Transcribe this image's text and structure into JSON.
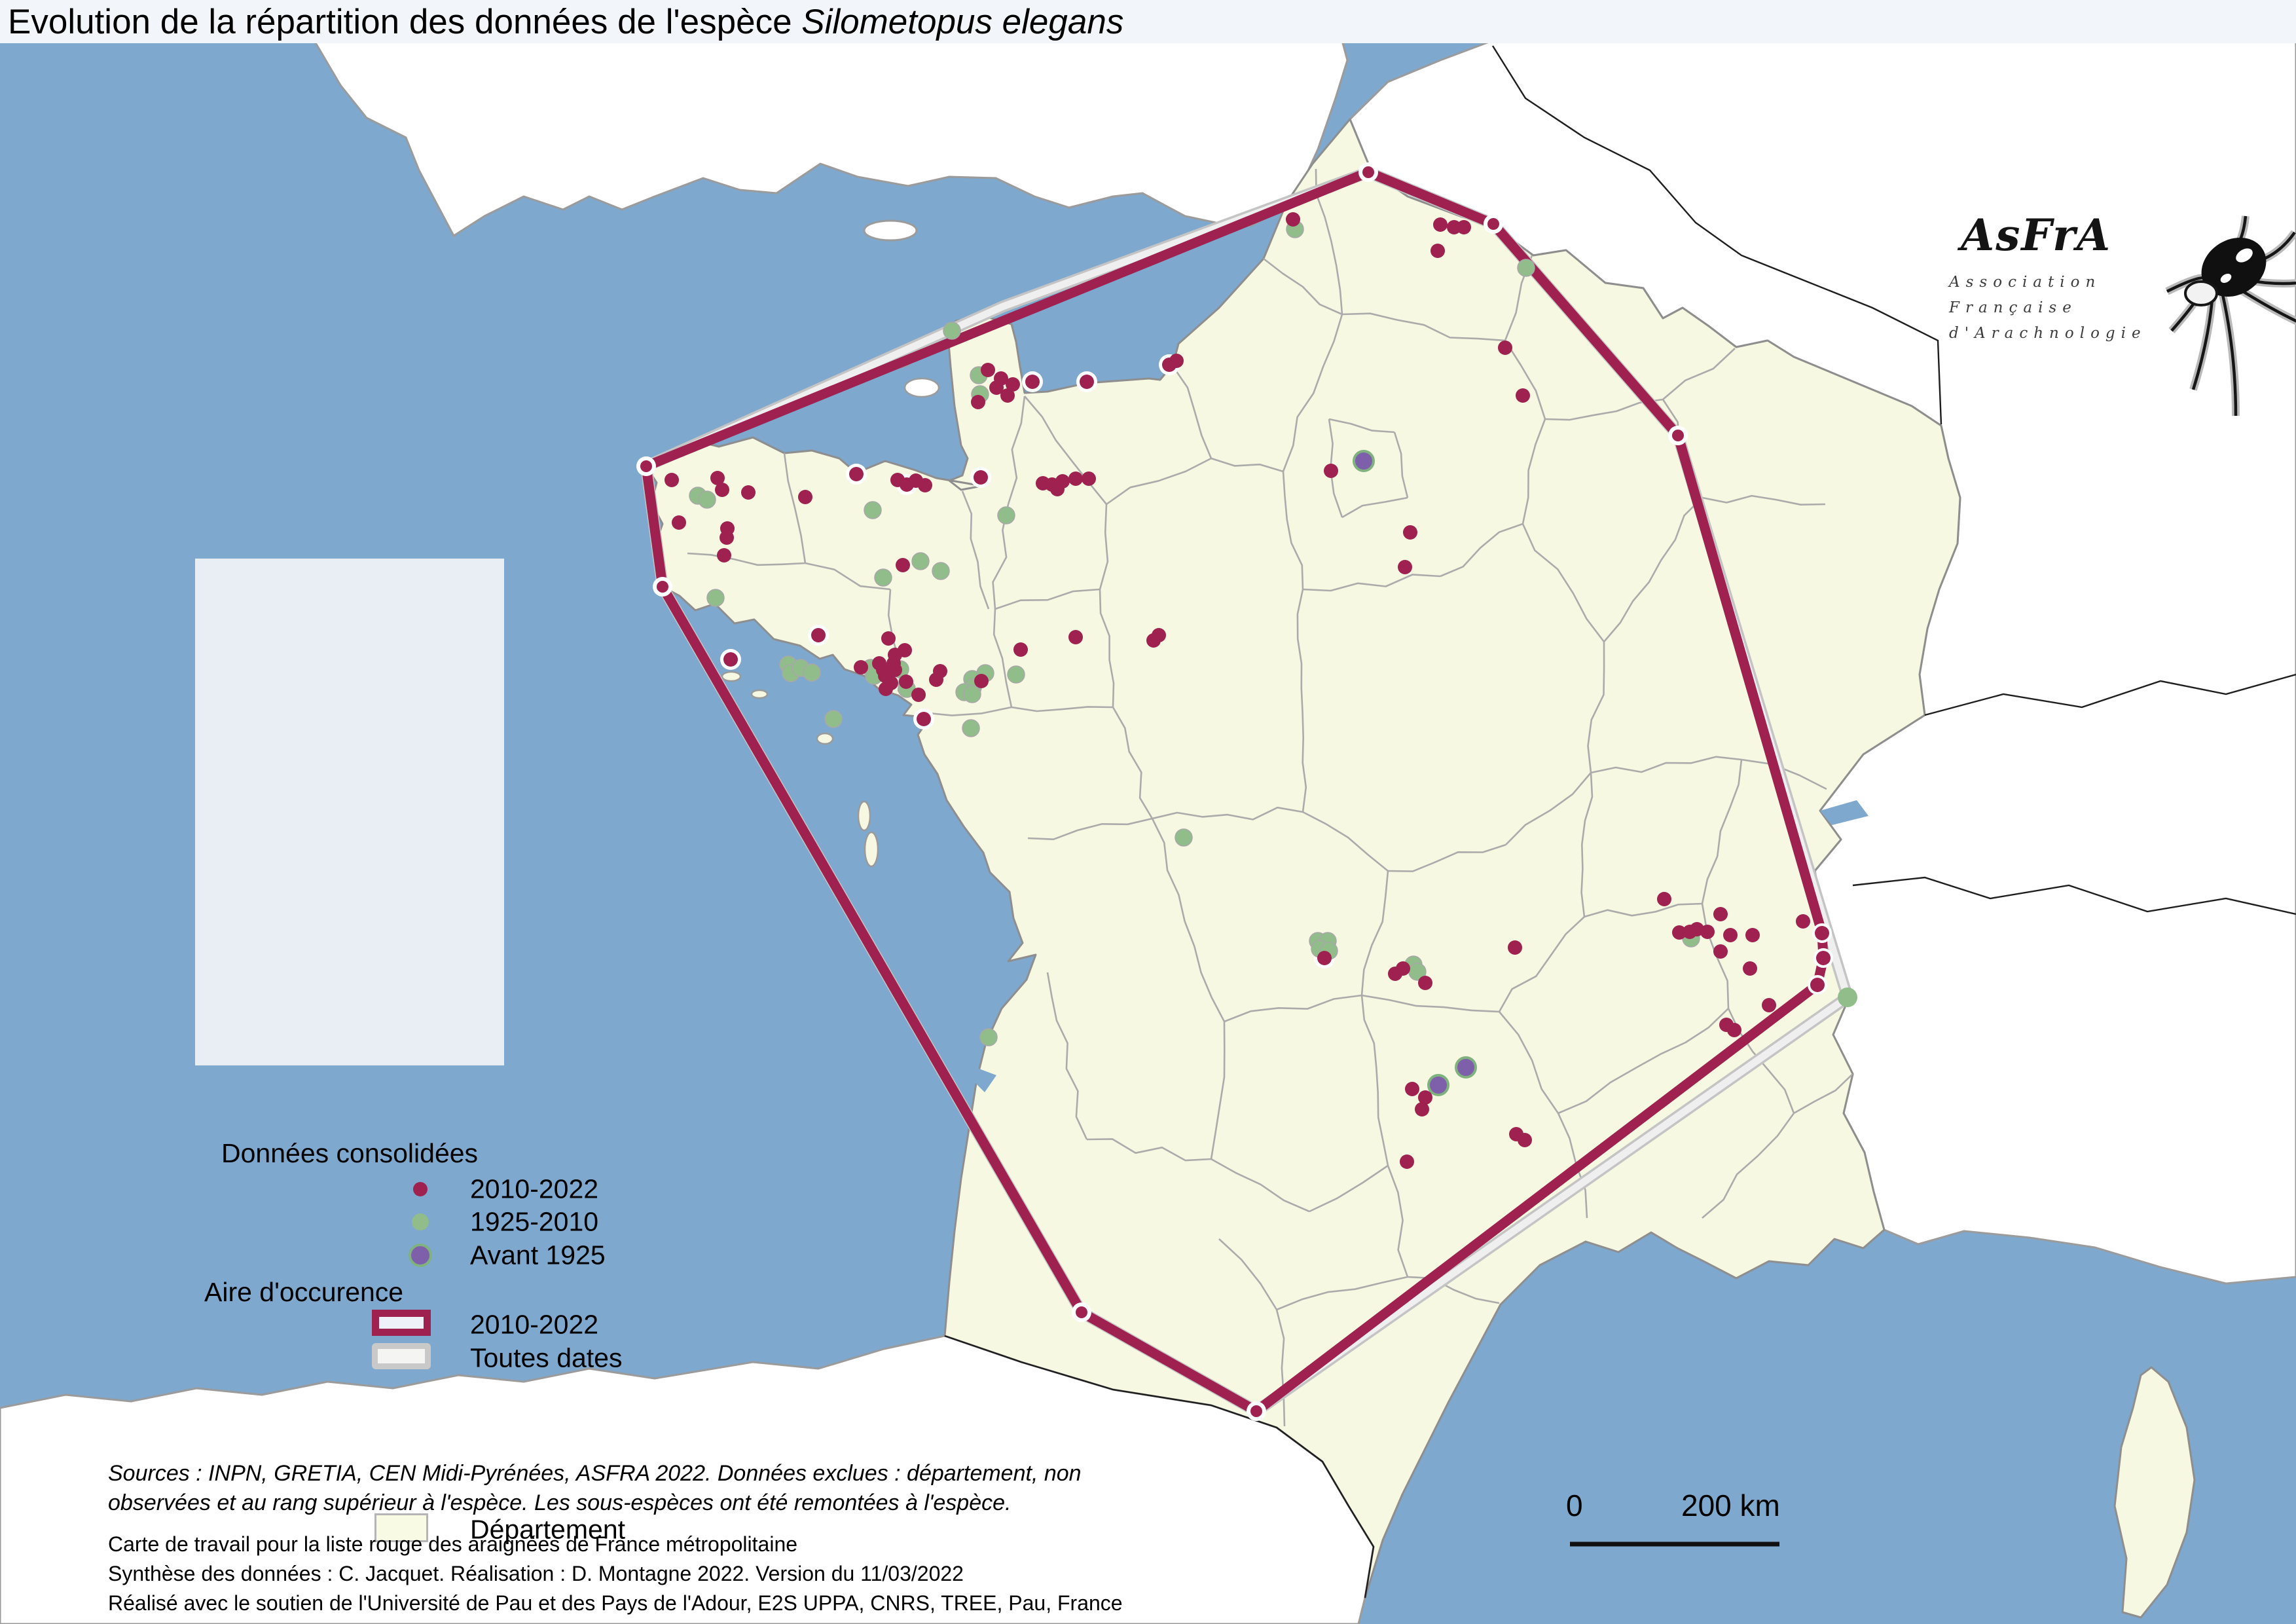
{
  "title": {
    "prefix": "Evolution de la répartition des données de l'espèce ",
    "species": "Silometopus elegans"
  },
  "legend": {
    "header_points": "Données consolidées",
    "items": [
      {
        "label": "2010-2022",
        "color": "#9e2150"
      },
      {
        "label": "1925-2010",
        "color": "#90bd8a"
      },
      {
        "label": "Avant 1925",
        "color": "#7e5fa9"
      }
    ],
    "header_area": "Aire d'occurence",
    "area_items": [
      {
        "label": "2010-2022",
        "color": "#9e2150"
      },
      {
        "label": "Toutes dates",
        "color": "#c9c9c9"
      }
    ],
    "department_label": "Département",
    "department_color": "#f8fae4"
  },
  "logo": {
    "name": "AsFrA",
    "sub1": "Association",
    "sub2": "Française",
    "sub3": "d'Arachnologie",
    "spider_icon": "spider-icon"
  },
  "scalebar": {
    "start": "0",
    "end": "200 km"
  },
  "notes": {
    "sources_line1": "Sources : INPN, GRETIA, CEN Midi-Pyrénées, ASFRA 2022. Données exclues : département, non",
    "sources_line2": "observées et au rang supérieur à l'espèce. Les sous-espèces ont été remontées à l'espèce.",
    "credit_line1": "Carte de travail pour la liste rouge des araignées de France métropolitaine",
    "credit_line2": "Synthèse des données : C. Jacquet. Réalisation : D. Montagne 2022. Version du 11/03/2022",
    "credit_line3": "Réalisé avec le soutien de l'Université de Pau et des Pays de l'Adour, E2S UPPA, CNRS, TREE, Pau, France"
  },
  "colors": {
    "sea": "#7EA8CE",
    "other_land": "#FFFFFF",
    "france_fill": "#F6F8E2",
    "border_gray": "#9b9b9b",
    "dept_gray": "#ABABAB",
    "maroon": "#9e2150",
    "green": "#90bd8a",
    "green_ring": "#7fb27f",
    "purple": "#7e5fa9",
    "hull_gray_outer": "#c4c4c4",
    "hull_gray_inner": "#efefef",
    "legend_bg": "#e9edf4"
  },
  "map": {
    "points_2010_2022": [
      [
        1975,
        335
      ],
      [
        2200,
        343
      ],
      [
        2221,
        347
      ],
      [
        2236,
        347
      ],
      [
        2196,
        383
      ],
      [
        2299,
        531
      ],
      [
        2326,
        604
      ],
      [
        1786,
        557
      ],
      [
        1797,
        551
      ],
      [
        1660,
        583
      ],
      [
        1593,
        738
      ],
      [
        1607,
        740
      ],
      [
        1623,
        735
      ],
      [
        1615,
        747
      ],
      [
        1643,
        731
      ],
      [
        1663,
        731
      ],
      [
        1498,
        729
      ],
      [
        1509,
        565
      ],
      [
        1529,
        578
      ],
      [
        1522,
        592
      ],
      [
        1547,
        587
      ],
      [
        1577,
        583
      ],
      [
        1539,
        604
      ],
      [
        1494,
        614
      ],
      [
        1026,
        733
      ],
      [
        1037,
        798
      ],
      [
        1096,
        730
      ],
      [
        1103,
        748
      ],
      [
        1143,
        752
      ],
      [
        1111,
        807
      ],
      [
        1110,
        821
      ],
      [
        1106,
        848
      ],
      [
        1230,
        759
      ],
      [
        1308,
        724
      ],
      [
        1371,
        733
      ],
      [
        1385,
        740
      ],
      [
        1399,
        734
      ],
      [
        1413,
        741
      ],
      [
        1250,
        970
      ],
      [
        1116,
        1007
      ],
      [
        1315,
        1019
      ],
      [
        1343,
        1013
      ],
      [
        1349,
        1023
      ],
      [
        1365,
        1013
      ],
      [
        1367,
        1023
      ],
      [
        1352,
        1032
      ],
      [
        1361,
        1043
      ],
      [
        1353,
        1052
      ],
      [
        1384,
        1041
      ],
      [
        1403,
        1061
      ],
      [
        1357,
        975
      ],
      [
        1382,
        993
      ],
      [
        1367,
        1000
      ],
      [
        1379,
        863
      ],
      [
        1436,
        1025
      ],
      [
        1430,
        1038
      ],
      [
        1499,
        1040
      ],
      [
        1559,
        992
      ],
      [
        1643,
        973
      ],
      [
        1762,
        978
      ],
      [
        1770,
        970
      ],
      [
        1411,
        1098
      ],
      [
        2033,
        719
      ],
      [
        2154,
        813
      ],
      [
        2146,
        866
      ],
      [
        2314,
        1447
      ],
      [
        2542,
        1373
      ],
      [
        2565,
        1424
      ],
      [
        2592,
        1419
      ],
      [
        2628,
        1396
      ],
      [
        2581,
        1423
      ],
      [
        2608,
        1423
      ],
      [
        2643,
        1428
      ],
      [
        2677,
        1428
      ],
      [
        2628,
        1453
      ],
      [
        2673,
        1479
      ],
      [
        2754,
        1407
      ],
      [
        2783,
        1425
      ],
      [
        2785,
        1463
      ],
      [
        2776,
        1504
      ],
      [
        2702,
        1535
      ],
      [
        2649,
        1573
      ],
      [
        2637,
        1565
      ],
      [
        2131,
        1487
      ],
      [
        2143,
        1479
      ],
      [
        2177,
        1501
      ],
      [
        2023,
        1463
      ],
      [
        2157,
        1663
      ],
      [
        2177,
        1676
      ],
      [
        2172,
        1694
      ],
      [
        2316,
        1732
      ],
      [
        2329,
        1741
      ],
      [
        2149,
        1774
      ]
    ],
    "points_1925_2010": [
      [
        1978,
        350
      ],
      [
        2331,
        409
      ],
      [
        1454,
        505
      ],
      [
        1495,
        573
      ],
      [
        1497,
        602
      ],
      [
        1537,
        787
      ],
      [
        1066,
        757
      ],
      [
        1080,
        763
      ],
      [
        1093,
        913
      ],
      [
        1204,
        1015
      ],
      [
        1208,
        1028
      ],
      [
        1223,
        1020
      ],
      [
        1240,
        1027
      ],
      [
        1330,
        1020
      ],
      [
        1335,
        1032
      ],
      [
        1375,
        1022
      ],
      [
        1385,
        1052
      ],
      [
        1406,
        857
      ],
      [
        1437,
        872
      ],
      [
        1349,
        882
      ],
      [
        1333,
        779
      ],
      [
        1505,
        1028
      ],
      [
        1485,
        1037
      ],
      [
        1486,
        1050
      ],
      [
        1473,
        1057
      ],
      [
        1485,
        1060
      ],
      [
        1552,
        1030
      ],
      [
        1483,
        1112
      ],
      [
        1273,
        1098
      ],
      [
        1808,
        1279
      ],
      [
        1510,
        1584
      ],
      [
        2013,
        1437
      ],
      [
        2028,
        1437
      ],
      [
        2016,
        1449
      ],
      [
        2030,
        1452
      ],
      [
        2159,
        1473
      ],
      [
        2165,
        1484
      ],
      [
        2583,
        1433
      ]
    ],
    "points_avant_1925": [
      [
        2083,
        704
      ],
      [
        2239,
        1630
      ],
      [
        2197,
        1657
      ]
    ],
    "halo_points": [
      [
        1308,
        724
      ],
      [
        1250,
        970
      ],
      [
        1116,
        1007
      ],
      [
        1411,
        1098
      ],
      [
        1660,
        583
      ],
      [
        1786,
        557
      ],
      [
        1498,
        729
      ],
      [
        1577,
        583
      ],
      [
        1385,
        740
      ],
      [
        2023,
        1463
      ]
    ],
    "hull_2010_2022": [
      [
        2090,
        263
      ],
      [
        2281,
        342
      ],
      [
        2563,
        665
      ],
      [
        2783,
        1425
      ],
      [
        2785,
        1463
      ],
      [
        2776,
        1504
      ],
      [
        1919,
        2155
      ],
      [
        1652,
        2004
      ],
      [
        1012,
        896
      ],
      [
        987,
        712
      ]
    ],
    "hull_toutes_dates": [
      [
        2090,
        263
      ],
      [
        2281,
        342
      ],
      [
        2563,
        665
      ],
      [
        2790,
        1418
      ],
      [
        2822,
        1523
      ],
      [
        1919,
        2155
      ],
      [
        1652,
        2004
      ],
      [
        1012,
        896
      ],
      [
        987,
        712
      ],
      [
        1532,
        468
      ]
    ],
    "hull_toutes_dates_green_vertex": [
      2822,
      1523
    ]
  }
}
